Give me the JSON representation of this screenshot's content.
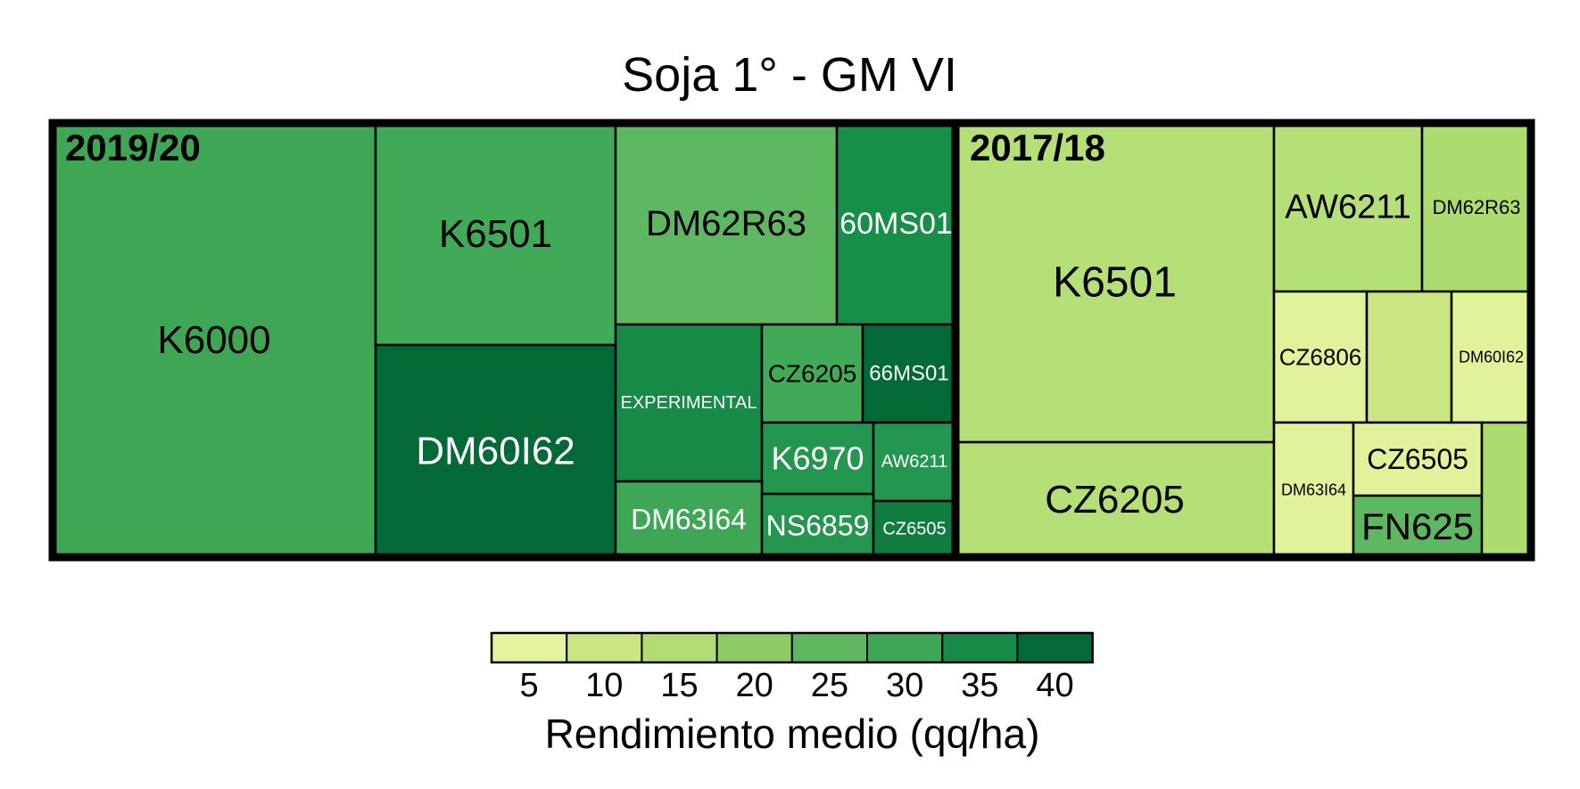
{
  "chart_data": {
    "type": "treemap",
    "title": "Soja 1° - GM VI",
    "legend": {
      "title": "Rendimiento medio (qq/ha)",
      "placement": "bottom",
      "ticks": [
        "5",
        "10",
        "15",
        "20",
        "25",
        "30",
        "35",
        "40"
      ],
      "colors": [
        "#e4f3a0",
        "#c9e683",
        "#b2dc73",
        "#8ecb66",
        "#5eb760",
        "#3fa656",
        "#178a47",
        "#036a37"
      ]
    },
    "groups": [
      {
        "label": "2019/20",
        "tiles": [
          {
            "label": "K6000",
            "color": "#3fa656",
            "text_color": "#000000"
          },
          {
            "label": "K6501",
            "color": "#41aa59",
            "text_color": "#000000"
          },
          {
            "label": "DM60I62",
            "color": "#036a37",
            "text_color": "#ffffff"
          },
          {
            "label": "DM62R63",
            "color": "#5db861",
            "text_color": "#000000"
          },
          {
            "label": "60MS01",
            "color": "#178f49",
            "text_color": "#ffffff"
          },
          {
            "label": "EXPERIMENTAL",
            "color": "#178a47",
            "text_color": "#ffffff"
          },
          {
            "label": "CZ6205",
            "color": "#41aa59",
            "text_color": "#000000"
          },
          {
            "label": "66MS01",
            "color": "#036a37",
            "text_color": "#ffffff"
          },
          {
            "label": "K6970",
            "color": "#239650",
            "text_color": "#ffffff"
          },
          {
            "label": "AW6211",
            "color": "#239650",
            "text_color": "#ffffff"
          },
          {
            "label": "DM63I64",
            "color": "#3fa656",
            "text_color": "#ffffff"
          },
          {
            "label": "NS6859",
            "color": "#239650",
            "text_color": "#ffffff"
          },
          {
            "label": "CZ6505",
            "color": "#0f7c40",
            "text_color": "#ffffff"
          }
        ]
      },
      {
        "label": "2017/18",
        "tiles": [
          {
            "label": "K6501",
            "color": "#b5df77",
            "text_color": "#000000"
          },
          {
            "label": "CZ6205",
            "color": "#b5df77",
            "text_color": "#000000"
          },
          {
            "label": "AW6211",
            "color": "#b5df77",
            "text_color": "#000000"
          },
          {
            "label": "DM62R63",
            "color": "#acdb70",
            "text_color": "#000000"
          },
          {
            "label": "CZ6806",
            "color": "#e0f29a",
            "text_color": "#000000"
          },
          {
            "label": "",
            "color": "#c9e683",
            "text_color": "#000000"
          },
          {
            "label": "DM60I62",
            "color": "#e0f29a",
            "text_color": "#000000"
          },
          {
            "label": "DM63I64",
            "color": "#e0f29a",
            "text_color": "#000000"
          },
          {
            "label": "CZ6505",
            "color": "#e0f29a",
            "text_color": "#000000"
          },
          {
            "label": "FN625",
            "color": "#5db861",
            "text_color": "#000000"
          },
          {
            "label": "",
            "color": "#acdb70",
            "text_color": "#000000"
          }
        ]
      }
    ]
  }
}
